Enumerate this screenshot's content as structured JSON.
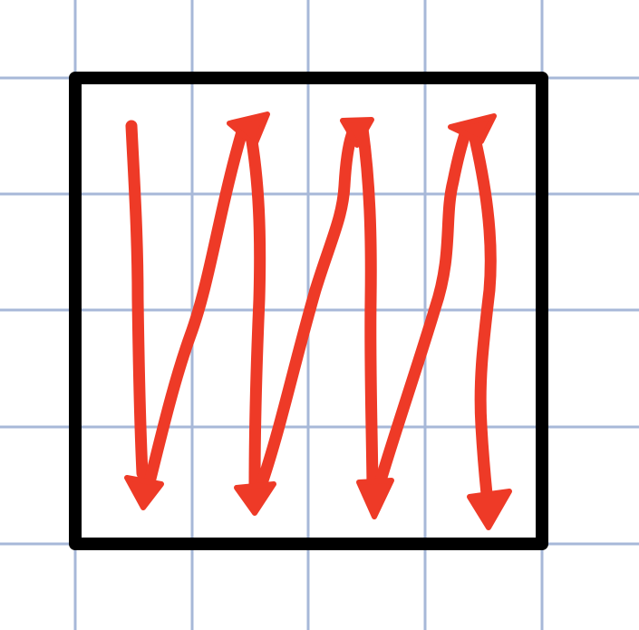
{
  "diagram": {
    "kind": "boustrophedon-scan-pattern",
    "colors": {
      "background": "#ffffff",
      "grid": "#a7b8d8",
      "frame": "#000000",
      "stroke": "#ee3a27"
    },
    "strokes": [
      {
        "name": "down-stroke-1",
        "direction": "down"
      },
      {
        "name": "up-stroke-1",
        "direction": "up"
      },
      {
        "name": "down-stroke-2",
        "direction": "down"
      },
      {
        "name": "up-stroke-2",
        "direction": "up"
      },
      {
        "name": "down-stroke-3",
        "direction": "down"
      },
      {
        "name": "up-stroke-3",
        "direction": "up"
      },
      {
        "name": "down-stroke-4",
        "direction": "down"
      }
    ]
  }
}
